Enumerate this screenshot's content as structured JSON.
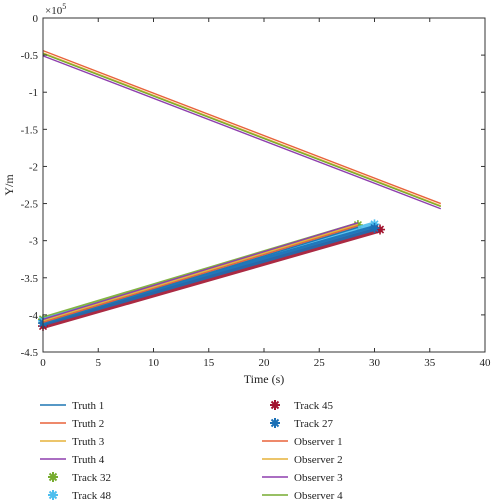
{
  "chart_data": {
    "type": "line",
    "xlabel": "Time (s)",
    "ylabel": "Y/m",
    "y_exponent_label": "×10",
    "y_exponent_power": "5",
    "xlim": [
      0,
      40
    ],
    "ylim": [
      -4.5,
      0
    ],
    "x_ticks": [
      "0",
      "5",
      "10",
      "15",
      "20",
      "25",
      "30",
      "35",
      "40"
    ],
    "y_ticks": [
      "0",
      "-0.5",
      "-1",
      "-1.5",
      "-2",
      "-2.5",
      "-3",
      "-3.5",
      "-4",
      "-4.5"
    ],
    "grid": false,
    "legend_position": "below",
    "series": [
      {
        "name": "Truth 1",
        "color": "#1f77b4",
        "kind": "line",
        "x": [
          0,
          28.5
        ],
        "y": [
          -4.12,
          -2.82
        ]
      },
      {
        "name": "Truth 2",
        "color": "#e8623a",
        "kind": "line",
        "x": [
          0,
          28.5
        ],
        "y": [
          -4.1,
          -2.8
        ]
      },
      {
        "name": "Truth 3",
        "color": "#e6b23a",
        "kind": "line",
        "x": [
          0,
          28.5
        ],
        "y": [
          -4.08,
          -2.78
        ]
      },
      {
        "name": "Truth 4",
        "color": "#8e3fae",
        "kind": "line",
        "x": [
          0,
          28.5
        ],
        "y": [
          -4.06,
          -2.76
        ]
      },
      {
        "name": "Track 32",
        "color": "#77ac30",
        "kind": "marker",
        "marker": "*",
        "x": [
          0,
          28.5
        ],
        "y": [
          -4.06,
          -2.79
        ]
      },
      {
        "name": "Track 48",
        "color": "#4dbeee",
        "kind": "marker",
        "marker": "*",
        "x": [
          0,
          30
        ],
        "y": [
          -4.08,
          -2.78
        ]
      },
      {
        "name": "Track 45",
        "color": "#a2142f",
        "kind": "marker",
        "marker": "*",
        "x": [
          0,
          30.5
        ],
        "y": [
          -4.15,
          -2.85
        ]
      },
      {
        "name": "Track 27",
        "color": "#1a6fb5",
        "kind": "marker",
        "marker": "*",
        "x": [
          0,
          30
        ],
        "y": [
          -4.11,
          -2.83
        ]
      },
      {
        "name": "Observer 1",
        "color": "#e8623a",
        "kind": "line",
        "x": [
          0,
          36
        ],
        "y": [
          -0.44,
          -2.5
        ]
      },
      {
        "name": "Observer 2",
        "color": "#e6b23a",
        "kind": "line",
        "x": [
          0,
          36
        ],
        "y": [
          -0.47,
          -2.53
        ]
      },
      {
        "name": "Observer 3",
        "color": "#8e3fae",
        "kind": "line",
        "x": [
          0,
          36
        ],
        "y": [
          -0.51,
          -2.57
        ]
      },
      {
        "name": "Observer 4",
        "color": "#77ac30",
        "kind": "line",
        "x": [
          0,
          36
        ],
        "y": [
          -0.48,
          -2.54
        ]
      }
    ]
  }
}
